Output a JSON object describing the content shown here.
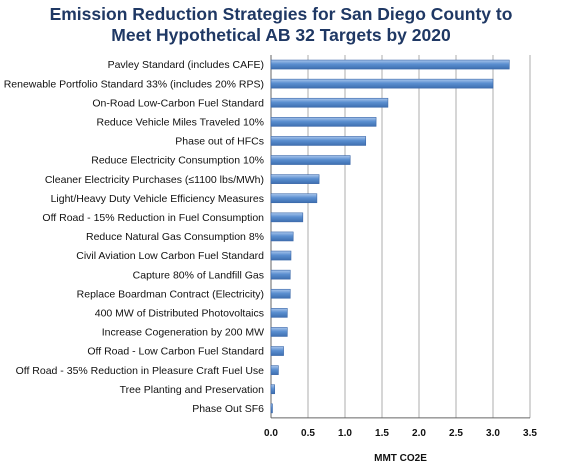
{
  "chart_data": {
    "type": "bar",
    "orientation": "horizontal",
    "title": [
      "Emission Reduction Strategies for San Diego County to",
      "Meet Hypothetical AB 32 Targets by 2020"
    ],
    "xlabel": "MMT CO2E",
    "ylabel": "",
    "xlim": [
      0,
      3.5
    ],
    "xticks": [
      "0.0",
      "0.5",
      "1.0",
      "1.5",
      "2.0",
      "2.5",
      "3.0",
      "3.5"
    ],
    "grid": "vertical",
    "bar_color": "#5b8fd0",
    "categories": [
      "Pavley Standard (includes CAFE)",
      "Renewable Portfolio Standard 33% (includes 20% RPS)",
      "On-Road Low-Carbon Fuel Standard",
      "Reduce Vehicle Miles Traveled 10%",
      "Phase out of HFCs",
      "Reduce Electricity Consumption 10%",
      "Cleaner Electricity Purchases (≤1100 lbs/MWh)",
      "Light/Heavy Duty Vehicle Efficiency Measures",
      "Off Road - 15% Reduction in Fuel Consumption",
      "Reduce Natural Gas Consumption 8%",
      "Civil Aviation Low Carbon Fuel Standard",
      "Capture 80% of Landfill Gas",
      "Replace Boardman Contract (Electricity)",
      "400 MW of Distributed Photovoltaics",
      "Increase Cogeneration by 200 MW",
      "Off Road - Low Carbon Fuel Standard",
      "Off Road - 35% Reduction in Pleasure Craft Fuel Use",
      "Tree Planting and Preservation",
      "Phase Out SF6"
    ],
    "values": [
      3.22,
      3.0,
      1.58,
      1.42,
      1.28,
      1.07,
      0.65,
      0.62,
      0.43,
      0.3,
      0.27,
      0.26,
      0.26,
      0.22,
      0.22,
      0.17,
      0.1,
      0.05,
      0.02
    ]
  }
}
